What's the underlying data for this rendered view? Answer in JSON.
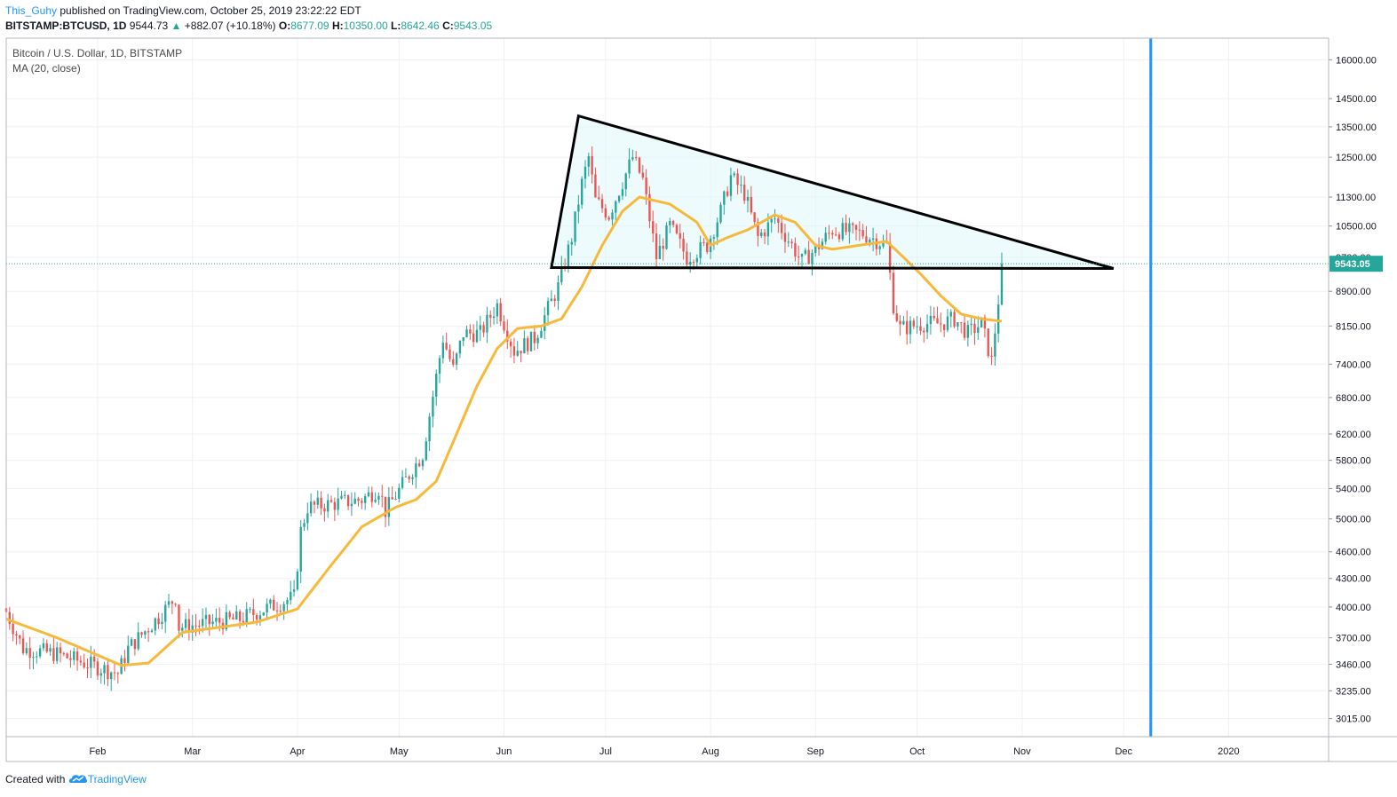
{
  "header": {
    "author": "This_Guhy",
    "published_text": " published on TradingView.com, October 25, 2019 23:22:22 EDT",
    "symbol": "BITSTAMP:BTCUSD, 1D",
    "last": "9544.73",
    "change": "+882.07 (+10.18%)",
    "open_label": "O:",
    "open": "8677.09",
    "high_label": "H:",
    "high": "10350.00",
    "low_label": "L:",
    "low": "8642.46",
    "close_label": "C:",
    "close": "9543.05"
  },
  "legend": {
    "title": "Bitcoin / U.S. Dollar, 1D, BITSTAMP",
    "indicator": "MA (20, close)"
  },
  "footer": {
    "created_with": "Created with",
    "brand": "TradingView"
  },
  "colors": {
    "up": "#26a69a",
    "down": "#ef5350",
    "ma": "#f6b93b",
    "vline": "#2196f3",
    "triangle": "#000000",
    "triangle_fill": "#e0f7fa",
    "price_badge": "#26a69a",
    "grid": "#eef0f4"
  },
  "icons": {
    "brand_logo": "tradingview-cloud-icon",
    "change_arrow": "up-triangle-icon"
  },
  "chart_data": {
    "type": "candlestick",
    "scale": "log",
    "x_range": [
      "2019-01-05",
      "2020-01-30"
    ],
    "y_range": [
      2880,
      16900
    ],
    "x_ticks": [
      {
        "label": "Feb",
        "date": "2019-02-01"
      },
      {
        "label": "Mar",
        "date": "2019-03-01"
      },
      {
        "label": "Apr",
        "date": "2019-04-01"
      },
      {
        "label": "May",
        "date": "2019-05-01"
      },
      {
        "label": "Jun",
        "date": "2019-06-01"
      },
      {
        "label": "Jul",
        "date": "2019-07-01"
      },
      {
        "label": "Aug",
        "date": "2019-08-01"
      },
      {
        "label": "Sep",
        "date": "2019-09-01"
      },
      {
        "label": "Oct",
        "date": "2019-10-01"
      },
      {
        "label": "Nov",
        "date": "2019-11-01"
      },
      {
        "label": "Dec",
        "date": "2019-12-01"
      },
      {
        "label": "2020",
        "date": "2020-01-01"
      }
    ],
    "y_ticks": [
      "16000.00",
      "14500.00",
      "13500.00",
      "12500.00",
      "11300.00",
      "10500.00",
      "9700.00",
      "8900.00",
      "8150.00",
      "7400.00",
      "6800.00",
      "6200.00",
      "5800.00",
      "5400.00",
      "5000.00",
      "4600.00",
      "4300.00",
      "4000.00",
      "3700.00",
      "3460.00",
      "3235.00",
      "3015.00"
    ],
    "last_price": {
      "label": "9543.05",
      "value": 9543.05
    },
    "key_points": [
      {
        "date": "2019-01-05",
        "close": 3950
      },
      {
        "date": "2019-01-10",
        "close": 3600
      },
      {
        "date": "2019-01-20",
        "close": 3550
      },
      {
        "date": "2019-02-07",
        "close": 3380
      },
      {
        "date": "2019-02-10",
        "close": 3600
      },
      {
        "date": "2019-02-19",
        "close": 3900
      },
      {
        "date": "2019-02-24",
        "close": 4100
      },
      {
        "date": "2019-02-25",
        "close": 3800
      },
      {
        "date": "2019-03-15",
        "close": 3880
      },
      {
        "date": "2019-03-31",
        "close": 4100
      },
      {
        "date": "2019-04-02",
        "close": 4850
      },
      {
        "date": "2019-04-04",
        "close": 5150
      },
      {
        "date": "2019-04-20",
        "close": 5250
      },
      {
        "date": "2019-04-25",
        "close": 5400
      },
      {
        "date": "2019-04-27",
        "close": 5100
      },
      {
        "date": "2019-05-08",
        "close": 5900
      },
      {
        "date": "2019-05-14",
        "close": 7900
      },
      {
        "date": "2019-05-17",
        "close": 7300
      },
      {
        "date": "2019-05-20",
        "close": 8000
      },
      {
        "date": "2019-05-25",
        "close": 8000
      },
      {
        "date": "2019-05-30",
        "close": 8600
      },
      {
        "date": "2019-06-04",
        "close": 7650
      },
      {
        "date": "2019-06-10",
        "close": 7900
      },
      {
        "date": "2019-06-17",
        "close": 9000
      },
      {
        "date": "2019-06-21",
        "close": 10200
      },
      {
        "date": "2019-06-24",
        "close": 11700
      },
      {
        "date": "2019-06-26",
        "close": 12500
      },
      {
        "date": "2019-06-28",
        "close": 11200
      },
      {
        "date": "2019-07-02",
        "close": 10800
      },
      {
        "date": "2019-07-09",
        "close": 12500
      },
      {
        "date": "2019-07-12",
        "close": 11800
      },
      {
        "date": "2019-07-16",
        "close": 9700
      },
      {
        "date": "2019-07-20",
        "close": 10500
      },
      {
        "date": "2019-07-25",
        "close": 9700
      },
      {
        "date": "2019-07-31",
        "close": 10000
      },
      {
        "date": "2019-08-04",
        "close": 10900
      },
      {
        "date": "2019-08-07",
        "close": 11900
      },
      {
        "date": "2019-08-11",
        "close": 11400
      },
      {
        "date": "2019-08-15",
        "close": 10200
      },
      {
        "date": "2019-08-20",
        "close": 10700
      },
      {
        "date": "2019-08-28",
        "close": 9600
      },
      {
        "date": "2019-09-01",
        "close": 9900
      },
      {
        "date": "2019-09-06",
        "close": 10400
      },
      {
        "date": "2019-09-15",
        "close": 10300
      },
      {
        "date": "2019-09-22",
        "close": 10000
      },
      {
        "date": "2019-09-24",
        "close": 8600
      },
      {
        "date": "2019-09-26",
        "close": 8100
      },
      {
        "date": "2019-10-03",
        "close": 8200
      },
      {
        "date": "2019-10-08",
        "close": 8200
      },
      {
        "date": "2019-10-12",
        "close": 8300
      },
      {
        "date": "2019-10-16",
        "close": 8000
      },
      {
        "date": "2019-10-20",
        "close": 8200
      },
      {
        "date": "2019-10-23",
        "close": 7450
      },
      {
        "date": "2019-10-25",
        "close": 8700
      },
      {
        "date": "2019-10-26",
        "close": 9543
      }
    ],
    "ma20_key_points": [
      {
        "date": "2019-01-05",
        "value": 3880
      },
      {
        "date": "2019-01-20",
        "value": 3700
      },
      {
        "date": "2019-02-08",
        "value": 3450
      },
      {
        "date": "2019-02-16",
        "value": 3470
      },
      {
        "date": "2019-02-26",
        "value": 3750
      },
      {
        "date": "2019-03-20",
        "value": 3850
      },
      {
        "date": "2019-04-01",
        "value": 3980
      },
      {
        "date": "2019-04-10",
        "value": 4400
      },
      {
        "date": "2019-04-20",
        "value": 4900
      },
      {
        "date": "2019-04-30",
        "value": 5150
      },
      {
        "date": "2019-05-06",
        "value": 5250
      },
      {
        "date": "2019-05-12",
        "value": 5500
      },
      {
        "date": "2019-05-18",
        "value": 6200
      },
      {
        "date": "2019-05-24",
        "value": 7000
      },
      {
        "date": "2019-05-30",
        "value": 7700
      },
      {
        "date": "2019-06-05",
        "value": 8100
      },
      {
        "date": "2019-06-12",
        "value": 8150
      },
      {
        "date": "2019-06-18",
        "value": 8300
      },
      {
        "date": "2019-06-24",
        "value": 9000
      },
      {
        "date": "2019-06-30",
        "value": 10000
      },
      {
        "date": "2019-07-06",
        "value": 10900
      },
      {
        "date": "2019-07-11",
        "value": 11300
      },
      {
        "date": "2019-07-20",
        "value": 11100
      },
      {
        "date": "2019-07-28",
        "value": 10600
      },
      {
        "date": "2019-08-01",
        "value": 10000
      },
      {
        "date": "2019-08-06",
        "value": 10200
      },
      {
        "date": "2019-08-12",
        "value": 10400
      },
      {
        "date": "2019-08-20",
        "value": 10800
      },
      {
        "date": "2019-08-26",
        "value": 10600
      },
      {
        "date": "2019-09-01",
        "value": 10000
      },
      {
        "date": "2019-09-06",
        "value": 9900
      },
      {
        "date": "2019-09-14",
        "value": 10000
      },
      {
        "date": "2019-09-22",
        "value": 10100
      },
      {
        "date": "2019-09-27",
        "value": 9700
      },
      {
        "date": "2019-10-02",
        "value": 9300
      },
      {
        "date": "2019-10-08",
        "value": 8800
      },
      {
        "date": "2019-10-14",
        "value": 8400
      },
      {
        "date": "2019-10-20",
        "value": 8300
      },
      {
        "date": "2019-10-26",
        "value": 8250
      }
    ],
    "triangle": [
      {
        "date": "2019-06-15",
        "price": 9450
      },
      {
        "date": "2019-06-23",
        "price": 13880
      },
      {
        "date": "2019-11-28",
        "price": 9430
      }
    ],
    "vertical_line_date": "2019-12-09"
  }
}
